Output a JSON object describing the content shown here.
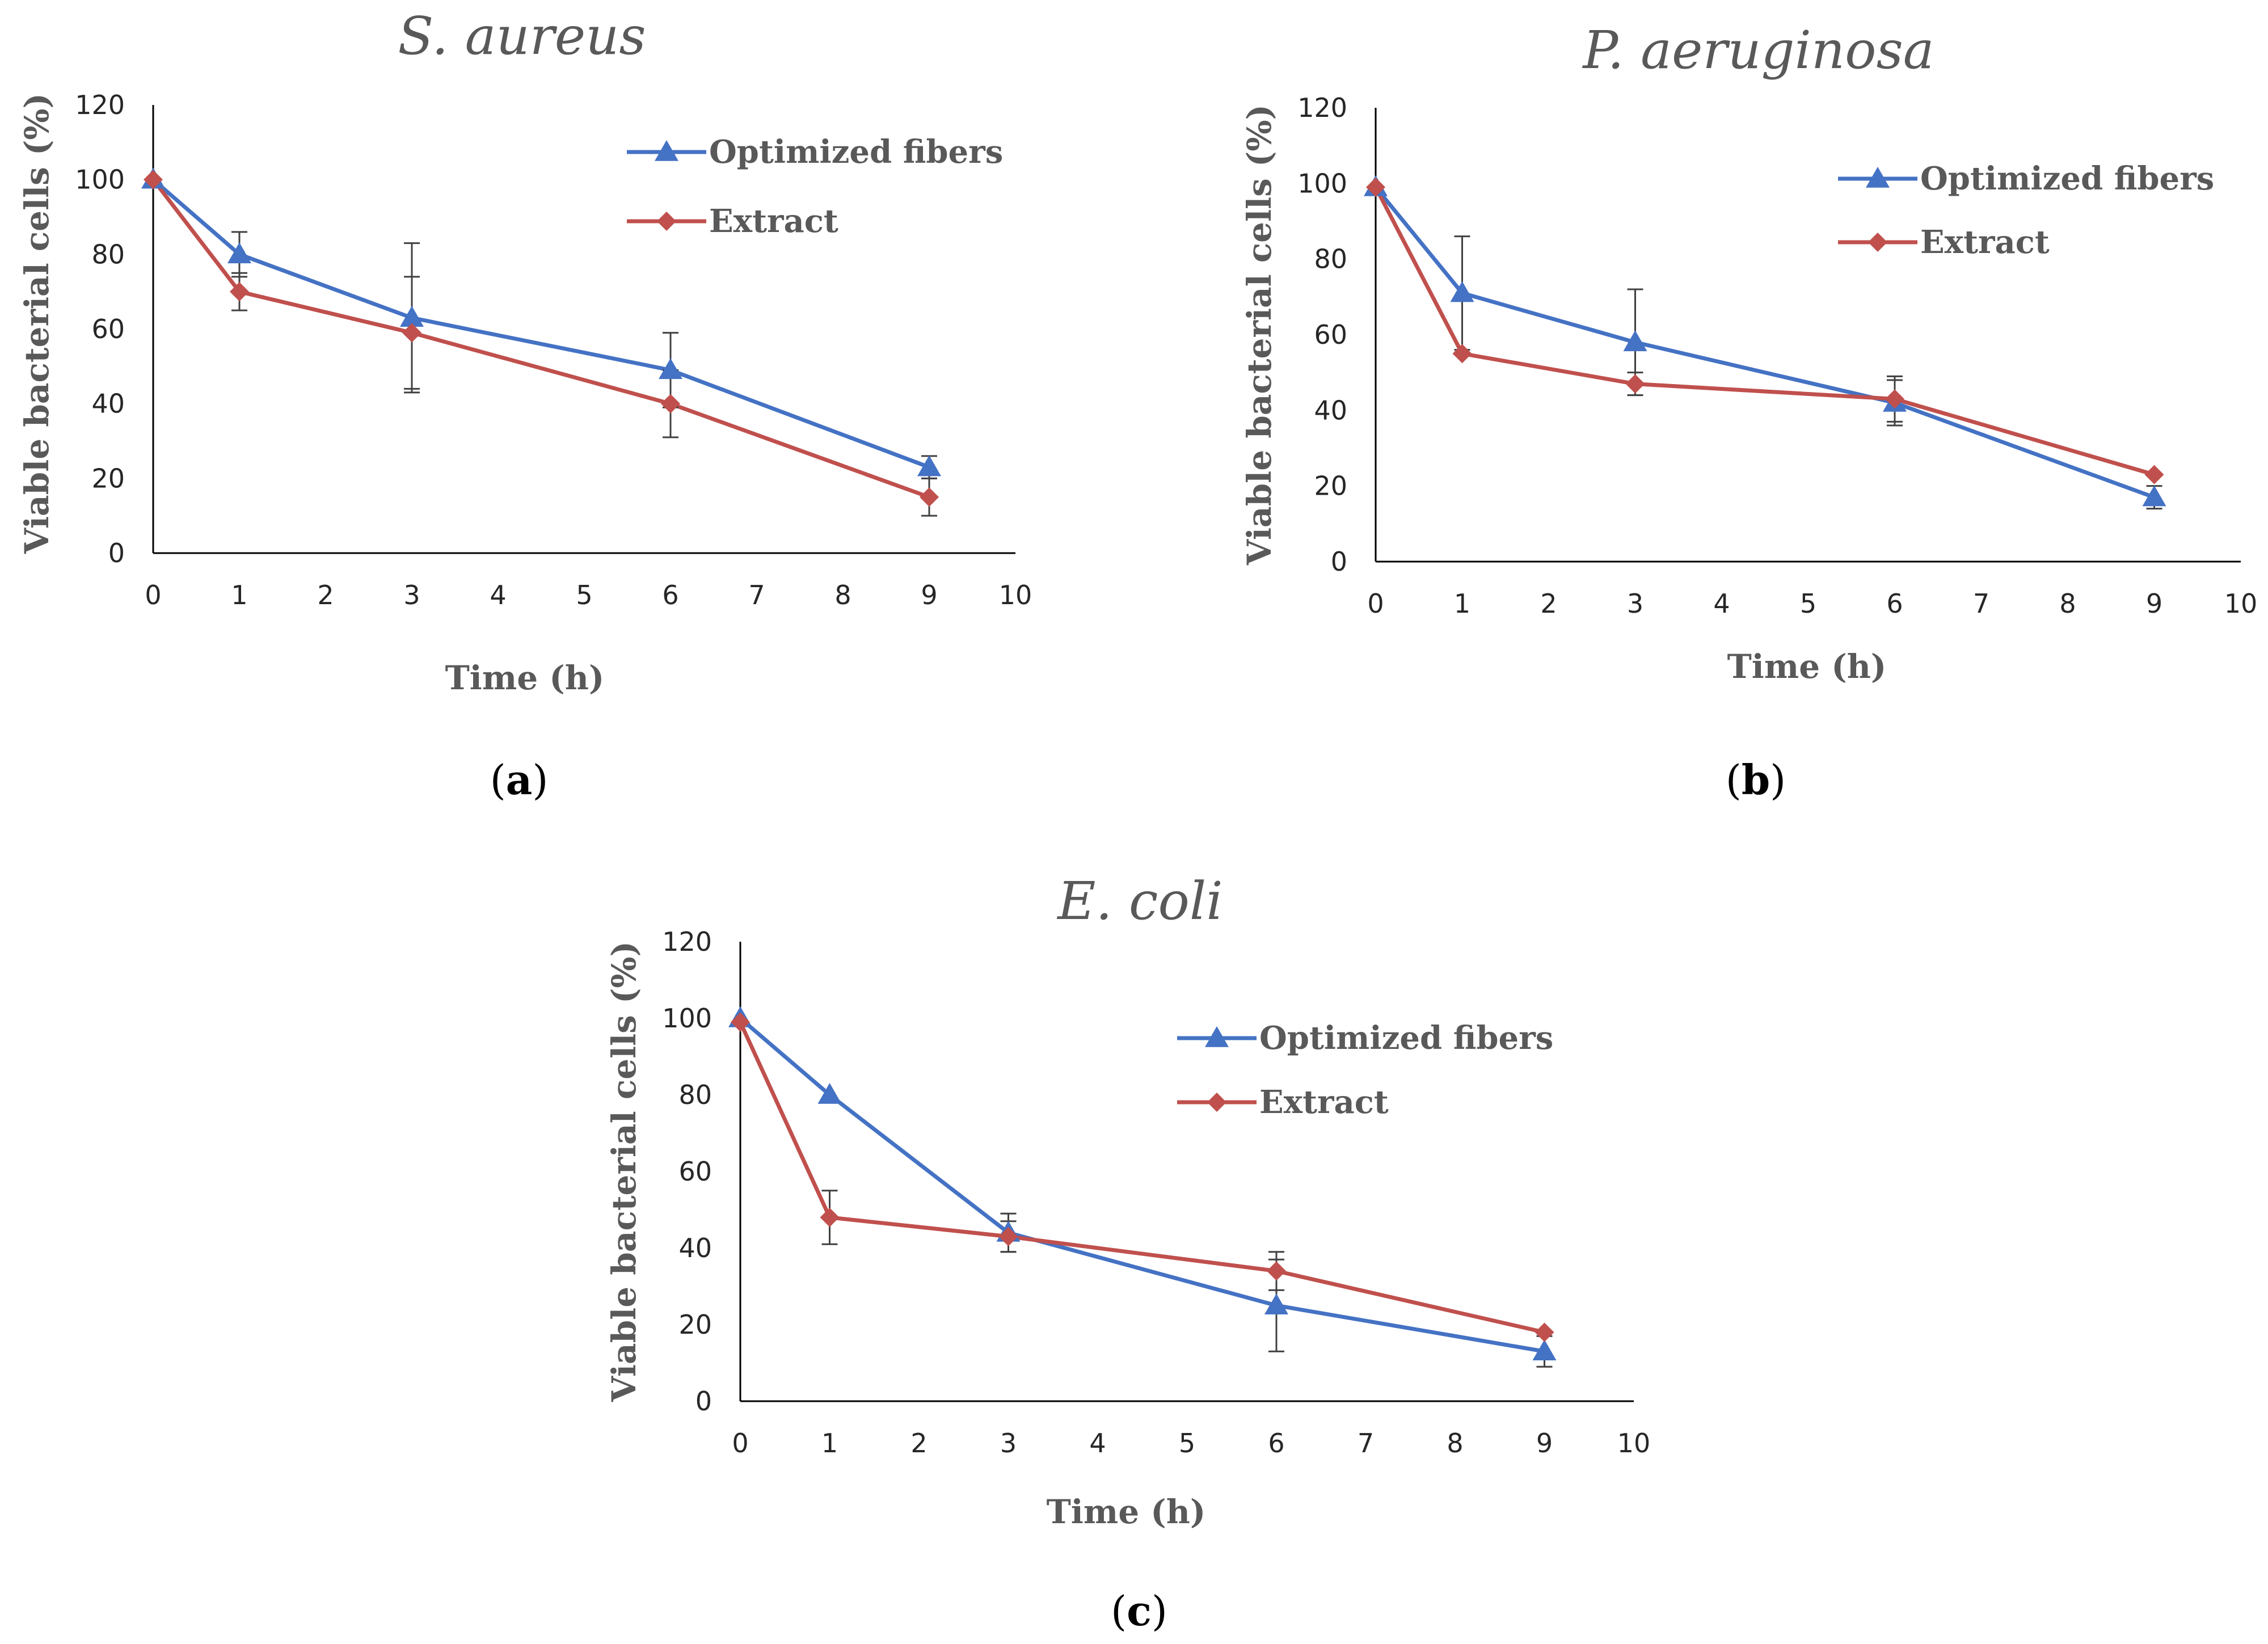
{
  "figure": {
    "panel_labels": [
      {
        "open": "(",
        "letter": "a",
        "close": ")"
      },
      {
        "open": "(",
        "letter": "b",
        "close": ")"
      },
      {
        "open": "(",
        "letter": "c",
        "close": ")"
      }
    ]
  },
  "colors": {
    "optimized": "#4472C4",
    "extract": "#C0504D",
    "error_bar": "#404040"
  },
  "chart_data": [
    {
      "type": "line",
      "title": "S. aureus",
      "xlabel": "Time (h)",
      "ylabel": "Viable bacterial cells (%)",
      "xlim": [
        0,
        10
      ],
      "ylim": [
        0,
        120
      ],
      "xticks": [
        0,
        1,
        2,
        3,
        4,
        5,
        6,
        7,
        8,
        9,
        10
      ],
      "yticks": [
        0,
        20,
        40,
        60,
        80,
        100,
        120
      ],
      "legend": "top-right",
      "series": [
        {
          "name": "Optimized fibers",
          "marker": "triangle",
          "x": [
            0,
            1,
            3,
            6,
            9
          ],
          "values": [
            100,
            80,
            63,
            49,
            23
          ],
          "error": [
            0,
            6,
            20,
            10,
            3
          ]
        },
        {
          "name": "Extract",
          "marker": "diamond",
          "x": [
            0,
            1,
            3,
            6,
            9
          ],
          "values": [
            100,
            70,
            59,
            40,
            15
          ],
          "error": [
            0,
            5,
            15,
            9,
            5
          ]
        }
      ]
    },
    {
      "type": "line",
      "title": "P. aeruginosa",
      "xlabel": "Time (h)",
      "ylabel": "Viable bacterial cells (%)",
      "xlim": [
        0,
        10
      ],
      "ylim": [
        0,
        120
      ],
      "xticks": [
        0,
        1,
        2,
        3,
        4,
        5,
        6,
        7,
        8,
        9,
        10
      ],
      "yticks": [
        0,
        20,
        40,
        60,
        80,
        100,
        120
      ],
      "legend": "top-right",
      "series": [
        {
          "name": "Optimized fibers",
          "marker": "triangle",
          "x": [
            0,
            1,
            3,
            6,
            9
          ],
          "values": [
            99,
            71,
            58,
            42,
            17
          ],
          "error": [
            0,
            15,
            14,
            6,
            3
          ]
        },
        {
          "name": "Extract",
          "marker": "diamond",
          "x": [
            0,
            1,
            3,
            6,
            9
          ],
          "values": [
            99,
            55,
            47,
            43,
            23
          ],
          "error": [
            0,
            0,
            3,
            6,
            0
          ]
        }
      ]
    },
    {
      "type": "line",
      "title": "E. coli",
      "xlabel": "Time (h)",
      "ylabel": "Viable bacterial cells (%)",
      "xlim": [
        0,
        10
      ],
      "ylim": [
        0,
        120
      ],
      "xticks": [
        0,
        1,
        2,
        3,
        4,
        5,
        6,
        7,
        8,
        9,
        10
      ],
      "yticks": [
        0,
        20,
        40,
        60,
        80,
        100,
        120
      ],
      "legend": "top-right",
      "series": [
        {
          "name": "Optimized fibers",
          "marker": "triangle",
          "x": [
            0,
            1,
            3,
            6,
            9
          ],
          "values": [
            100,
            80,
            44,
            25,
            13
          ],
          "error": [
            0,
            0,
            5,
            12,
            4
          ]
        },
        {
          "name": "Extract",
          "marker": "diamond",
          "x": [
            0,
            1,
            3,
            6,
            9
          ],
          "values": [
            99,
            48,
            43,
            34,
            18
          ],
          "error": [
            0,
            7,
            4,
            5,
            0
          ]
        }
      ]
    }
  ]
}
